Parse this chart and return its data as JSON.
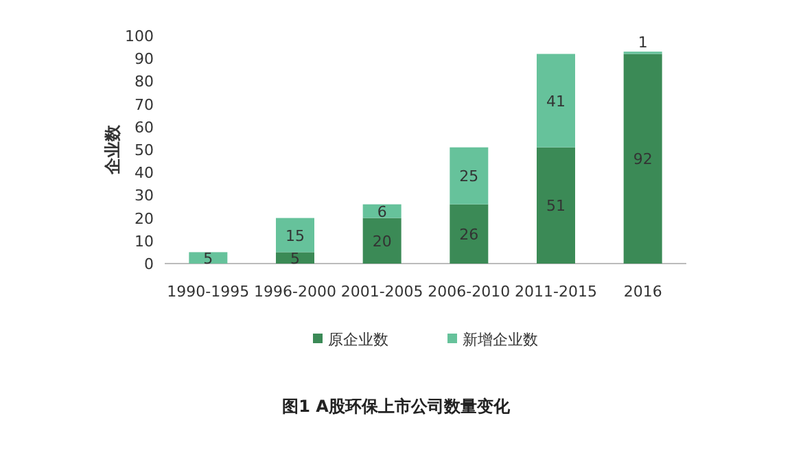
{
  "chart_data": {
    "type": "bar",
    "stacked": true,
    "title": "图1 A股环保上市公司数量变化",
    "ylabel": "企业数",
    "categories": [
      "1990-1995",
      "1996-2000",
      "2001-2005",
      "2006-2010",
      "2011-2015",
      "2016"
    ],
    "series": [
      {
        "name": "原企业数",
        "color": "#3b8a56",
        "values": [
          0,
          5,
          20,
          26,
          51,
          92
        ],
        "value_labels": [
          null,
          "5",
          "20",
          "26",
          "51",
          "92"
        ]
      },
      {
        "name": "新增企业数",
        "color": "#66c29b",
        "values": [
          5,
          15,
          6,
          25,
          41,
          1
        ],
        "value_labels": [
          "5",
          "15",
          "6",
          "25",
          "41",
          "1"
        ]
      }
    ],
    "ylim": [
      0,
      100
    ],
    "yticks": [
      0,
      10,
      20,
      30,
      40,
      50,
      60,
      70,
      80,
      90,
      100
    ],
    "legend": "bottom",
    "grid": false
  }
}
